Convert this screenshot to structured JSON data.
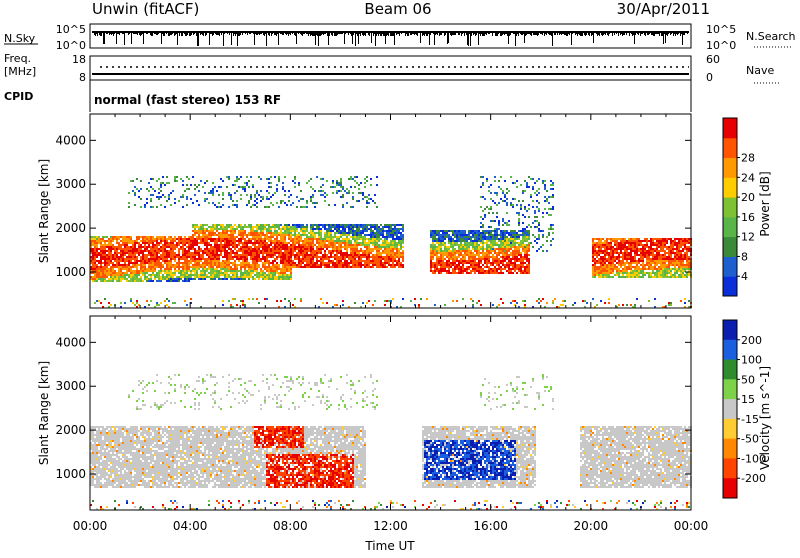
{
  "header": {
    "station": "Unwin (fitACF)",
    "beam": "Beam 06",
    "date": "30/Apr/2011"
  },
  "top_panels": {
    "nsky_label": "N.Sky",
    "nsky_ticks": [
      "10^5",
      "10^0"
    ],
    "nsearch_label": "N.Search",
    "nsearch_ticks": [
      "10^5",
      "10^0"
    ],
    "freq_label": "Freq.",
    "freq_unit": "[MHz]",
    "freq_ticks": [
      "18",
      "8"
    ],
    "nave_label": "Nave",
    "nave_ticks": [
      "60",
      "0"
    ],
    "cpid_label": "CPID",
    "cpid_text": "normal (fast stereo) 153 RF"
  },
  "chart_data": [
    {
      "type": "heatmap",
      "xlabel": "Time UT",
      "ylabel": "Slant Range [km]",
      "xticks": [
        "00:00",
        "04:00",
        "08:00",
        "12:00",
        "16:00",
        "20:00",
        "00:00"
      ],
      "xlim_hours": [
        0,
        24
      ],
      "yticks": [
        "1000",
        "2000",
        "3000",
        "4000"
      ],
      "ylim": [
        180,
        4600
      ],
      "colorbar_label": "Power [dB]",
      "colorbar_ticks": [
        "4",
        "8",
        "12",
        "16",
        "20",
        "24",
        "28"
      ],
      "colorbar_colors": [
        "#0a2fd8",
        "#1e5fd0",
        "#3a8a3a",
        "#59b548",
        "#7cc234",
        "#ffcc00",
        "#ff9900",
        "#ff5500",
        "#e60000"
      ],
      "backscatter_bands": [
        {
          "t0": 0.0,
          "t1": 4.0,
          "r0": 800,
          "r1": 1850,
          "level": "strong"
        },
        {
          "t0": 4.0,
          "t1": 8.0,
          "r0": 850,
          "r1": 2100,
          "level": "strong"
        },
        {
          "t0": 8.0,
          "t1": 12.5,
          "r0": 1100,
          "r1": 2100,
          "level": "strong"
        },
        {
          "t0": 13.5,
          "t1": 17.5,
          "r0": 1000,
          "r1": 2000,
          "level": "strong"
        },
        {
          "t0": 20.0,
          "t1": 24.0,
          "r0": 900,
          "r1": 1800,
          "level": "strong"
        },
        {
          "t0": 1.5,
          "t1": 11.5,
          "r0": 2500,
          "r1": 3200,
          "level": "weak"
        },
        {
          "t0": 15.5,
          "t1": 18.5,
          "r0": 1500,
          "r1": 3200,
          "level": "weak"
        }
      ]
    },
    {
      "type": "heatmap",
      "xlabel": "Time UT",
      "ylabel": "Slant Range [km]",
      "xticks": [
        "00:00",
        "04:00",
        "08:00",
        "12:00",
        "16:00",
        "20:00",
        "00:00"
      ],
      "xlim_hours": [
        0,
        24
      ],
      "yticks": [
        "1000",
        "2000",
        "3000",
        "4000"
      ],
      "ylim": [
        180,
        4600
      ],
      "colorbar_label": "Velocity [m s^-1]",
      "colorbar_ticks": [
        "200",
        "100",
        "50",
        "15",
        "-15",
        "-50",
        "-100",
        "-200"
      ],
      "colorbar_colors": [
        "#0a1fb0",
        "#1a5fe0",
        "#2e8b2e",
        "#7cd34a",
        "#c8c8c8",
        "#ffcc33",
        "#ff8800",
        "#ff4400",
        "#e60000"
      ],
      "velocity_regions": [
        {
          "t0": 7.0,
          "t1": 10.5,
          "r0": 700,
          "r1": 1500,
          "velocity": -200
        },
        {
          "t0": 13.3,
          "t1": 17.0,
          "r0": 900,
          "r1": 1800,
          "velocity": 200
        },
        {
          "t0": 6.5,
          "t1": 8.5,
          "r0": 1600,
          "r1": 2200,
          "velocity": -100
        }
      ]
    }
  ]
}
